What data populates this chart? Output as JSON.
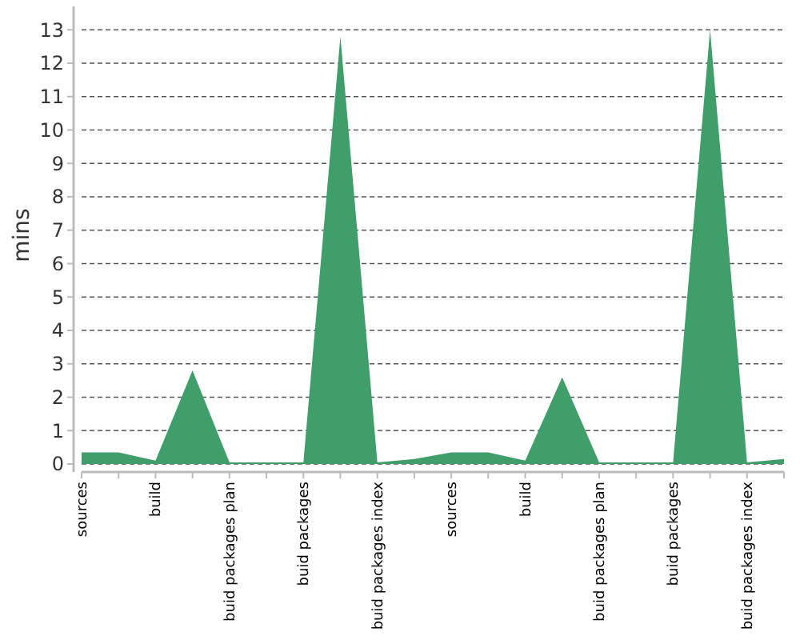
{
  "chart_data": {
    "type": "area",
    "ylabel": "mins",
    "categories": [
      "sources",
      null,
      "build",
      null,
      "buid packages plan",
      null,
      "buid packages",
      null,
      "buid packages index",
      null,
      "sources",
      null,
      "build",
      null,
      "buid packages plan",
      null,
      "buid packages",
      null,
      "buid packages index",
      null
    ],
    "series": [
      {
        "color": "#409e6a",
        "values": [
          0.35,
          0.35,
          0.1,
          2.8,
          0.05,
          0.05,
          0.05,
          12.8,
          0.05,
          0.15,
          0.35,
          0.35,
          0.1,
          2.6,
          0.05,
          0.05,
          0.05,
          13.0,
          0.05,
          0.15
        ]
      }
    ],
    "ylim": [
      0,
      13.7
    ],
    "yticks": [
      0,
      1,
      2,
      3,
      4,
      5,
      6,
      7,
      8,
      9,
      10,
      11,
      12,
      13
    ],
    "grid": "y"
  }
}
